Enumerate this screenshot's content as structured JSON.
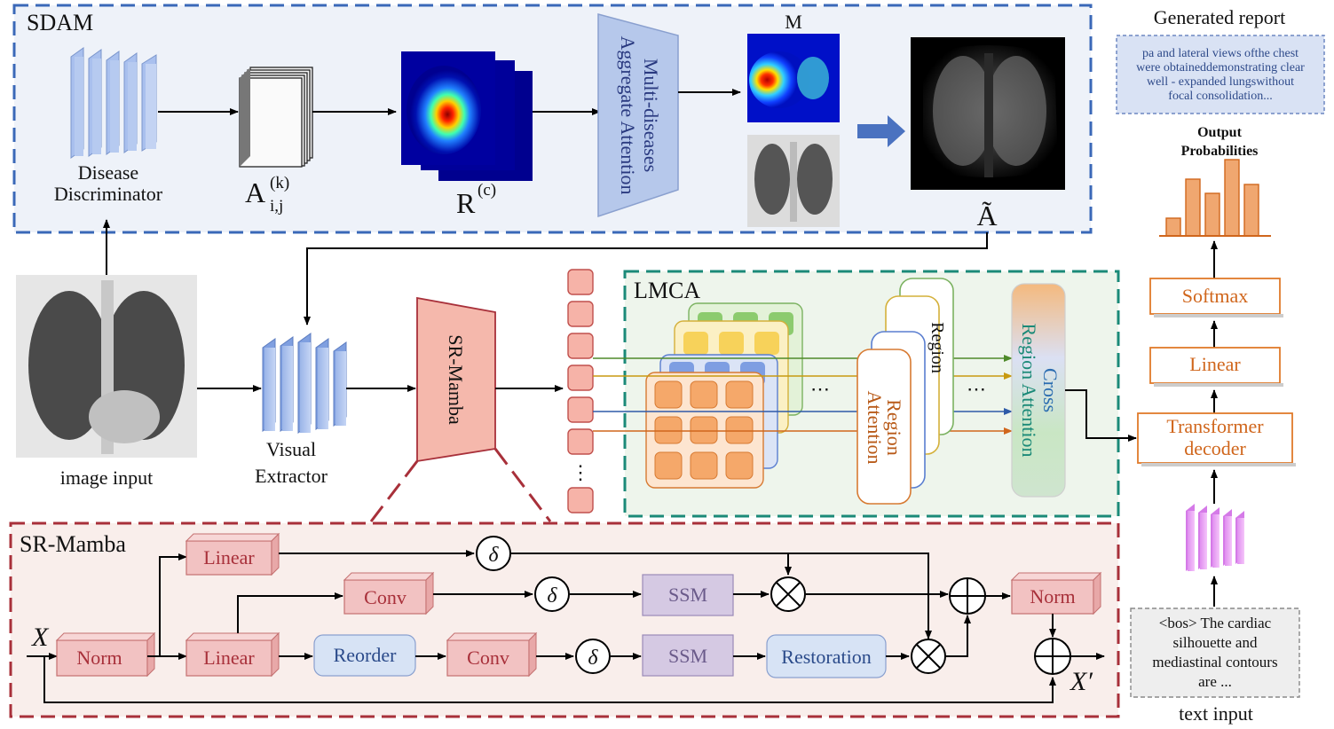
{
  "sdam": {
    "title": "SDAM",
    "disc_l1": "Disease",
    "disc_l2": "Discriminator",
    "a_base": "A",
    "a_sup": "(k)",
    "a_sub": "i,j",
    "r_base": "R",
    "r_sup": "(c)",
    "agg_l1": "Multi-diseases",
    "agg_l2": "Aggregate Attention",
    "m_label": "M",
    "a_tilde": "Ã"
  },
  "main": {
    "image_input": "image input",
    "ve_l1": "Visual",
    "ve_l2": "Extractor",
    "sr_mamba": "SR-Mamba",
    "token_dots": "⋮"
  },
  "lmca": {
    "title": "LMCA",
    "dots": "⋯",
    "region_l1": "Region",
    "region_l2": "Attention",
    "region_partial": "Region",
    "cross_l1": "Cross",
    "cross_l2": "Region Attention"
  },
  "report": {
    "title": "Generated report",
    "lines": [
      "pa and lateral views ofthe chest",
      "were obtaineddemonstrating clear",
      "well - expanded lungswithout",
      "focal consolidation..."
    ],
    "output_l1": "Output",
    "output_l2": "Probabilities",
    "softmax": "Softmax",
    "linear": "Linear",
    "decoder_l1": "Transformer",
    "decoder_l2": "decoder",
    "text_lines": [
      "<bos> The cardiac",
      "silhouette and",
      "mediastinal contours",
      "are ..."
    ],
    "text_input": "text input"
  },
  "srm": {
    "title": "SR-Mamba",
    "x_in": "X",
    "x_out": "X′",
    "norm_in": "Norm",
    "linear_top": "Linear",
    "linear_mid": "Linear",
    "conv_upper": "Conv",
    "conv_lower": "Conv",
    "reorder": "Reorder",
    "ssm_upper": "SSM",
    "ssm_lower": "SSM",
    "restoration": "Restoration",
    "norm_out": "Norm",
    "delta": "δ"
  },
  "colors": {
    "sdam_border": "#3a68b8",
    "lmca_border": "#1b8a78",
    "srm_border": "#a8303a",
    "orange": "#e07a2a",
    "red_box": "#f2c2c2",
    "purple_box": "#d5c9e3",
    "blue_box": "#d7e3f5"
  }
}
